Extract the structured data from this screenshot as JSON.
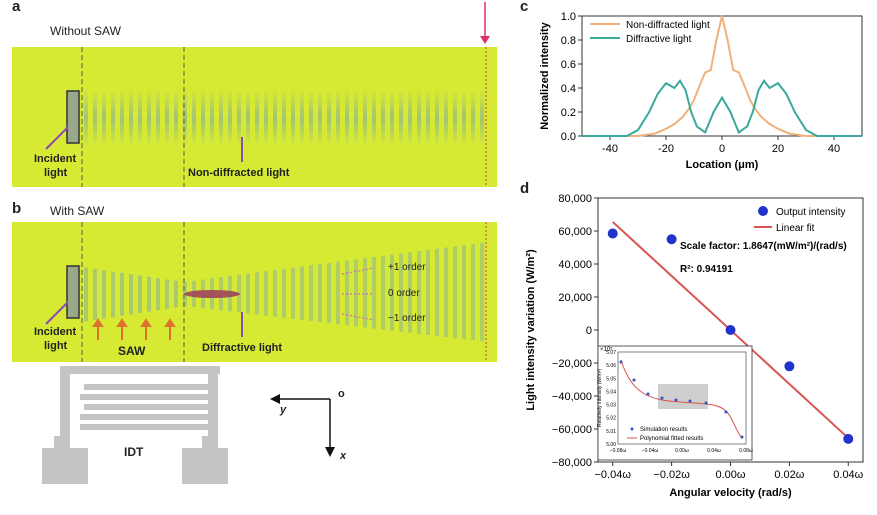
{
  "panels": {
    "a": {
      "letter": "a",
      "title": "Without SAW",
      "incident": [
        "Incident",
        "light"
      ],
      "label": "Non-diffracted light"
    },
    "b": {
      "letter": "b",
      "title": "With SAW",
      "incident": [
        "Incident",
        "light"
      ],
      "saw": "SAW",
      "label": "Diffractive light",
      "orders": [
        "+1 order",
        "0 order",
        "−1 order"
      ]
    },
    "idt": {
      "label": "IDT",
      "axes": {
        "o": "o",
        "x": "x",
        "y": "y"
      }
    },
    "c": {
      "letter": "c"
    },
    "d": {
      "letter": "d",
      "scale_factor": "Scale factor: 1.8647(mW/m²)/(rad/s)",
      "r2_label": "R²: 0.94191",
      "inset": {
        "exp": "×10⁵",
        "ylabel": "Relatively intensity (W/m²)",
        "yticks": [
          "5.00",
          "5.01",
          "5.02",
          "5.03",
          "5.04",
          "5.05",
          "5.06",
          "5.07"
        ],
        "xticks": [
          "−0.08ω",
          "−0.04ω",
          "0.00ω",
          "0.04ω",
          "0.08ω"
        ],
        "legend": [
          "Simulation results",
          "Polynomial fitted results"
        ]
      }
    }
  },
  "chart_data": [
    {
      "type": "line",
      "panel": "c",
      "xlabel": "Location (μm)",
      "ylabel": "Normalized intensity",
      "xlim": [
        -50,
        50
      ],
      "ylim": [
        0,
        1.0
      ],
      "xticks": [
        -40,
        -20,
        0,
        20,
        40
      ],
      "yticks": [
        0.0,
        0.2,
        0.4,
        0.6,
        0.8,
        1.0
      ],
      "legend_position": "top-left",
      "series": [
        {
          "name": "Non-diffracted light",
          "color": "#f0b27a",
          "x": [
            -50,
            -30,
            -24,
            -20,
            -17,
            -14,
            -12,
            -10,
            -8,
            -6,
            -4,
            -2,
            0,
            2,
            4,
            6,
            8,
            10,
            12,
            14,
            17,
            20,
            24,
            30,
            50
          ],
          "y": [
            0,
            0,
            0.02,
            0.06,
            0.1,
            0.16,
            0.22,
            0.3,
            0.42,
            0.53,
            0.55,
            0.8,
            1.0,
            0.8,
            0.55,
            0.53,
            0.42,
            0.3,
            0.22,
            0.16,
            0.1,
            0.06,
            0.02,
            0,
            0
          ]
        },
        {
          "name": "Diffractive light",
          "color": "#3aa99b",
          "x": [
            -50,
            -34,
            -30,
            -26,
            -23,
            -20,
            -17,
            -15,
            -13,
            -11,
            -9,
            -6,
            -3,
            0,
            3,
            6,
            9,
            11,
            13,
            15,
            17,
            20,
            23,
            26,
            30,
            34,
            50
          ],
          "y": [
            0,
            0,
            0.05,
            0.2,
            0.35,
            0.44,
            0.4,
            0.46,
            0.38,
            0.2,
            0.08,
            0.03,
            0.2,
            0.32,
            0.2,
            0.03,
            0.08,
            0.2,
            0.38,
            0.46,
            0.4,
            0.44,
            0.35,
            0.2,
            0.05,
            0,
            0
          ]
        }
      ]
    },
    {
      "type": "scatter",
      "panel": "d",
      "xlabel": "Angular velocity (rad/s)",
      "ylabel": "Light intensity variation (W/m²)",
      "xlim": [
        -0.045,
        0.045
      ],
      "ylim": [
        -80000,
        80000
      ],
      "xticks": [
        -0.04,
        -0.02,
        0.0,
        0.02,
        0.04
      ],
      "xticklabels": [
        "−0.04ω",
        "−0.02ω",
        "0.00ω",
        "0.02ω",
        "0.04ω"
      ],
      "yticks": [
        -80000,
        -60000,
        -40000,
        -20000,
        0,
        20000,
        40000,
        60000,
        80000
      ],
      "yticklabels": [
        "−80,000",
        "−60,000",
        "−40,000",
        "−20,000",
        "0",
        "20,000",
        "40,000",
        "60,000",
        "80,000"
      ],
      "legend_position": "top-right",
      "series": [
        {
          "name": "Output intensity",
          "color": "#2233cc",
          "x": [
            -0.04,
            -0.02,
            0.0,
            0.02,
            0.04
          ],
          "y": [
            58500,
            55000,
            0,
            -22000,
            -66000
          ]
        },
        {
          "name": "Linear fit",
          "color": "#d9534f",
          "x": [
            -0.04,
            0.04
          ],
          "y": [
            65500,
            -65500
          ]
        }
      ]
    }
  ]
}
